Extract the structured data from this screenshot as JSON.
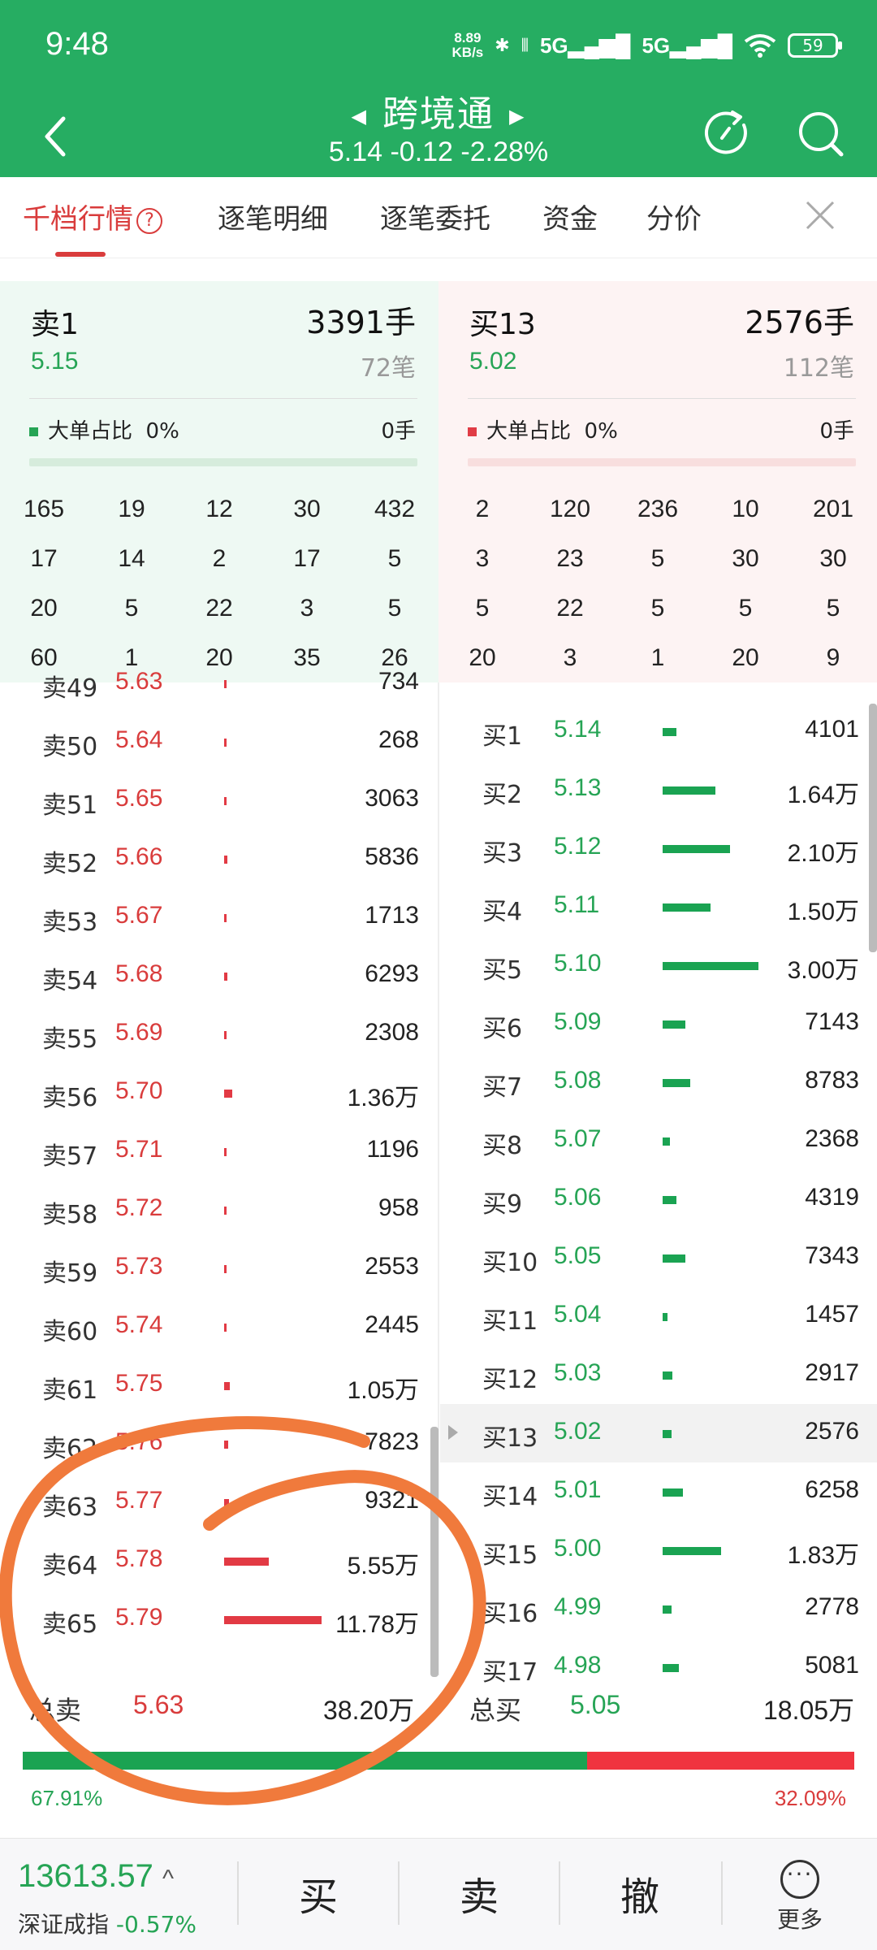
{
  "status": {
    "time": "9:48",
    "net_speed": "8.89",
    "net_unit": "KB/s",
    "sig1": "5G",
    "sig2": "5G",
    "battery": "59"
  },
  "header": {
    "title": "跨境通",
    "subtitle": "5.14 -0.12 -2.28%"
  },
  "tabs": [
    "千档行情",
    "逐笔明细",
    "逐笔委托",
    "资金",
    "分价"
  ],
  "sell_panel": {
    "label": "卖1",
    "vol": "3391手",
    "price": "5.15",
    "count": "72笔",
    "big_label": "大单占比",
    "big_pct": "0%",
    "big_vol": "0手",
    "grid": [
      [
        "165",
        "19",
        "12",
        "30",
        "432"
      ],
      [
        "17",
        "14",
        "2",
        "17",
        "5"
      ],
      [
        "20",
        "5",
        "22",
        "3",
        "5"
      ],
      [
        "60",
        "1",
        "20",
        "35",
        "26"
      ]
    ]
  },
  "buy_panel": {
    "label": "买13",
    "vol": "2576手",
    "price": "5.02",
    "count": "112笔",
    "big_label": "大单占比",
    "big_pct": "0%",
    "big_vol": "0手",
    "grid": [
      [
        "2",
        "120",
        "236",
        "10",
        "201"
      ],
      [
        "3",
        "23",
        "5",
        "30",
        "30"
      ],
      [
        "5",
        "22",
        "5",
        "5",
        "5"
      ],
      [
        "20",
        "3",
        "1",
        "20",
        "9"
      ]
    ]
  },
  "sell_rows": [
    {
      "label": "卖49",
      "price": "5.63",
      "vol": "734",
      "bar": 0.01
    },
    {
      "label": "卖50",
      "price": "5.64",
      "vol": "268",
      "bar": 0.01
    },
    {
      "label": "卖51",
      "price": "5.65",
      "vol": "3063",
      "bar": 0.01
    },
    {
      "label": "卖52",
      "price": "5.66",
      "vol": "5836",
      "bar": 0.03
    },
    {
      "label": "卖53",
      "price": "5.67",
      "vol": "1713",
      "bar": 0.01
    },
    {
      "label": "卖54",
      "price": "5.68",
      "vol": "6293",
      "bar": 0.03
    },
    {
      "label": "卖55",
      "price": "5.69",
      "vol": "2308",
      "bar": 0.01
    },
    {
      "label": "卖56",
      "price": "5.70",
      "vol": "1.36万",
      "bar": 0.08
    },
    {
      "label": "卖57",
      "price": "5.71",
      "vol": "1196",
      "bar": 0.01
    },
    {
      "label": "卖58",
      "price": "5.72",
      "vol": "958",
      "bar": 0.01
    },
    {
      "label": "卖59",
      "price": "5.73",
      "vol": "2553",
      "bar": 0.01
    },
    {
      "label": "卖60",
      "price": "5.74",
      "vol": "2445",
      "bar": 0.01
    },
    {
      "label": "卖61",
      "price": "5.75",
      "vol": "1.05万",
      "bar": 0.06
    },
    {
      "label": "卖62",
      "price": "5.76",
      "vol": "7823",
      "bar": 0.04
    },
    {
      "label": "卖63",
      "price": "5.77",
      "vol": "9321",
      "bar": 0.05
    },
    {
      "label": "卖64",
      "price": "5.78",
      "vol": "5.55万",
      "bar": 0.46
    },
    {
      "label": "卖65",
      "price": "5.79",
      "vol": "11.78万",
      "bar": 1.0
    }
  ],
  "buy_rows": [
    {
      "label": "买1",
      "price": "5.14",
      "vol": "4101",
      "bar": 0.14
    },
    {
      "label": "买2",
      "price": "5.13",
      "vol": "1.64万",
      "bar": 0.55
    },
    {
      "label": "买3",
      "price": "5.12",
      "vol": "2.10万",
      "bar": 0.7
    },
    {
      "label": "买4",
      "price": "5.11",
      "vol": "1.50万",
      "bar": 0.5
    },
    {
      "label": "买5",
      "price": "5.10",
      "vol": "3.00万",
      "bar": 1.0
    },
    {
      "label": "买6",
      "price": "5.09",
      "vol": "7143",
      "bar": 0.24
    },
    {
      "label": "买7",
      "price": "5.08",
      "vol": "8783",
      "bar": 0.29
    },
    {
      "label": "买8",
      "price": "5.07",
      "vol": "2368",
      "bar": 0.08
    },
    {
      "label": "买9",
      "price": "5.06",
      "vol": "4319",
      "bar": 0.14
    },
    {
      "label": "买10",
      "price": "5.05",
      "vol": "7343",
      "bar": 0.24
    },
    {
      "label": "买11",
      "price": "5.04",
      "vol": "1457",
      "bar": 0.05
    },
    {
      "label": "买12",
      "price": "5.03",
      "vol": "2917",
      "bar": 0.1
    },
    {
      "label": "买13",
      "price": "5.02",
      "vol": "2576",
      "bar": 0.09
    },
    {
      "label": "买14",
      "price": "5.01",
      "vol": "6258",
      "bar": 0.21
    },
    {
      "label": "买15",
      "price": "5.00",
      "vol": "1.83万",
      "bar": 0.61
    },
    {
      "label": "买16",
      "price": "4.99",
      "vol": "2778",
      "bar": 0.09
    },
    {
      "label": "买17",
      "price": "4.98",
      "vol": "5081",
      "bar": 0.17
    }
  ],
  "totals": {
    "sell_label": "总卖",
    "sell_price": "5.63",
    "sell_vol": "38.20万",
    "buy_label": "总买",
    "buy_price": "5.05",
    "buy_vol": "18.05万",
    "sell_pct": "67.91%",
    "buy_pct": "32.09%",
    "sell_ratio": 0.6791
  },
  "footer": {
    "index": "13613.57",
    "name": "深证成指",
    "change": "-0.57%",
    "buy": "买",
    "sell": "卖",
    "cancel": "撤",
    "more": "更多"
  },
  "colors": {
    "green": "#26ad62",
    "red": "#e03c45",
    "price_green": "#26a455",
    "price_red": "#d93c3c",
    "bar_green": "#1aa352",
    "bar_red": "#e23a44",
    "annotation": "#f07a3c"
  }
}
